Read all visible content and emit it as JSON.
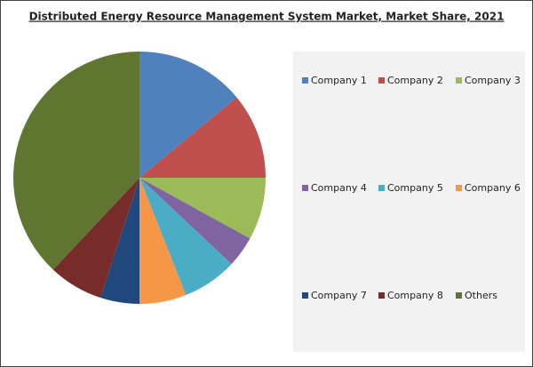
{
  "chart_data": {
    "type": "pie",
    "title": "Distributed Energy Resource Management System Market, Market Share, 2021",
    "categories": [
      "Company 1",
      "Company 2",
      "Company 3",
      "Company 4",
      "Company 5",
      "Company 6",
      "Company 7",
      "Company 8",
      "Others"
    ],
    "values": [
      14,
      11,
      8,
      4,
      7,
      6,
      5,
      7,
      38
    ],
    "colors": [
      "#4f81bd",
      "#c0504d",
      "#9bbb59",
      "#8064a2",
      "#4bacc6",
      "#f79646",
      "#1f497d",
      "#772c2a",
      "#5f7530"
    ]
  }
}
